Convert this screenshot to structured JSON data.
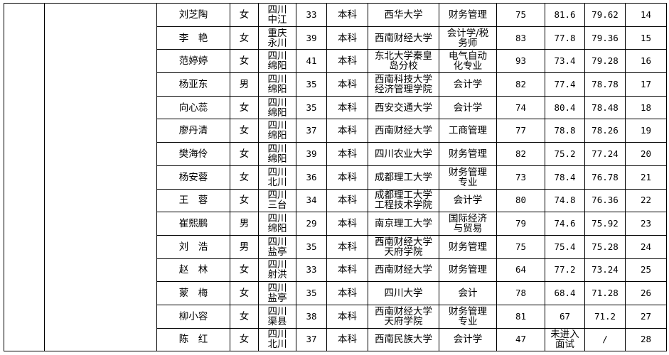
{
  "rows": [
    {
      "name": "刘芝陶",
      "gender": "女",
      "origin": "四川\n中江",
      "age": "33",
      "education": "本科",
      "school": "西华大学",
      "major": "财务管理",
      "written": "75",
      "interview": "81.6",
      "total": "79.62",
      "rank": "14"
    },
    {
      "name": "李　艳",
      "gender": "女",
      "origin": "重庆\n永川",
      "age": "39",
      "education": "本科",
      "school": "西南财经大学",
      "major": "会计学/税\n务师",
      "written": "83",
      "interview": "77.8",
      "total": "79.36",
      "rank": "15"
    },
    {
      "name": "范婷婷",
      "gender": "女",
      "origin": "四川\n绵阳",
      "age": "41",
      "education": "本科",
      "school": "东北大学秦皇\n岛分校",
      "major": "电气自动\n化专业",
      "written": "93",
      "interview": "73.4",
      "total": "79.28",
      "rank": "16"
    },
    {
      "name": "杨亚东",
      "gender": "男",
      "origin": "四川\n绵阳",
      "age": "35",
      "education": "本科",
      "school": "西南科技大学\n经济管理学院",
      "major": "会计学",
      "written": "82",
      "interview": "77.4",
      "total": "78.78",
      "rank": "17"
    },
    {
      "name": "向心蕊",
      "gender": "女",
      "origin": "四川\n绵阳",
      "age": "35",
      "education": "本科",
      "school": "西安交通大学",
      "major": "会计学",
      "written": "74",
      "interview": "80.4",
      "total": "78.48",
      "rank": "18"
    },
    {
      "name": "廖丹清",
      "gender": "女",
      "origin": "四川\n绵阳",
      "age": "37",
      "education": "本科",
      "school": "西南财经大学",
      "major": "工商管理",
      "written": "77",
      "interview": "78.8",
      "total": "78.26",
      "rank": "19"
    },
    {
      "name": "樊海伶",
      "gender": "女",
      "origin": "四川\n绵阳",
      "age": "39",
      "education": "本科",
      "school": "四川农业大学",
      "major": "财务管理",
      "written": "82",
      "interview": "75.2",
      "total": "77.24",
      "rank": "20"
    },
    {
      "name": "杨安蓉",
      "gender": "女",
      "origin": "四川\n北川",
      "age": "36",
      "education": "本科",
      "school": "成都理工大学",
      "major": "财务管理\n专业",
      "written": "73",
      "interview": "78.4",
      "total": "76.78",
      "rank": "21"
    },
    {
      "name": "王　蓉",
      "gender": "女",
      "origin": "四川\n三台",
      "age": "34",
      "education": "本科",
      "school": "成都理工大学\n工程技术学院",
      "major": "会计学",
      "written": "80",
      "interview": "74.8",
      "total": "76.36",
      "rank": "22"
    },
    {
      "name": "崔熙鹏",
      "gender": "男",
      "origin": "四川\n绵阳",
      "age": "29",
      "education": "本科",
      "school": "南京理工大学",
      "major": "国际经济\n与贸易",
      "written": "79",
      "interview": "74.6",
      "total": "75.92",
      "rank": "23"
    },
    {
      "name": "刘　浩",
      "gender": "男",
      "origin": "四川\n盐亭",
      "age": "35",
      "education": "本科",
      "school": "西南财经大学\n天府学院",
      "major": "财务管理",
      "written": "75",
      "interview": "75.4",
      "total": "75.28",
      "rank": "24"
    },
    {
      "name": "赵　林",
      "gender": "女",
      "origin": "四川\n射洪",
      "age": "33",
      "education": "本科",
      "school": "西南财经大学",
      "major": "财务管理",
      "written": "64",
      "interview": "77.2",
      "total": "73.24",
      "rank": "25"
    },
    {
      "name": "蒙　梅",
      "gender": "女",
      "origin": "四川\n盐亭",
      "age": "35",
      "education": "本科",
      "school": "四川大学",
      "major": "会计",
      "written": "78",
      "interview": "68.4",
      "total": "71.28",
      "rank": "26"
    },
    {
      "name": "柳小容",
      "gender": "女",
      "origin": "四川\n渠县",
      "age": "38",
      "education": "本科",
      "school": "西南财经大学\n天府学院",
      "major": "财务管理\n专业",
      "written": "81",
      "interview": "67",
      "total": "71.2",
      "rank": "27"
    },
    {
      "name": "陈　红",
      "gender": "女",
      "origin": "四川\n北川",
      "age": "37",
      "education": "本科",
      "school": "西南民族大学",
      "major": "会计学",
      "written": "47",
      "interview": "未进入\n面试",
      "total": "/",
      "rank": "28"
    }
  ]
}
